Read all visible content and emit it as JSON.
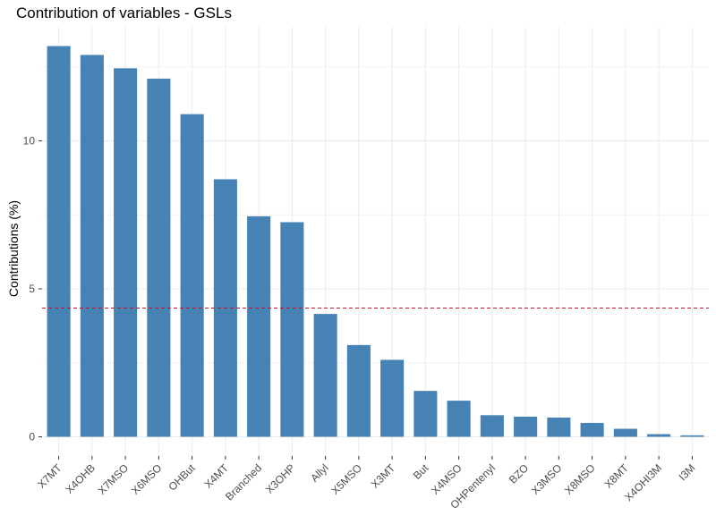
{
  "chart_data": {
    "type": "bar",
    "title": "Contribution of variables - GSLs",
    "xlabel": "",
    "ylabel": "Contributions (%)",
    "categories": [
      "X7MT",
      "X4OHB",
      "X7MSO",
      "X6MSO",
      "OHBut",
      "X4MT",
      "Branched",
      "X3OHP",
      "Allyl",
      "X5MSO",
      "X3MT",
      "But",
      "X4MSO",
      "OHPentenyl",
      "BZO",
      "X3MSO",
      "X8MSO",
      "X8MT",
      "X4OHI3M",
      "I3M"
    ],
    "values": [
      13.2,
      12.9,
      12.45,
      12.1,
      10.9,
      8.7,
      7.45,
      7.25,
      4.15,
      3.1,
      2.6,
      1.55,
      1.22,
      0.73,
      0.68,
      0.65,
      0.47,
      0.27,
      0.09,
      0.05
    ],
    "reference_line": 4.35,
    "ylim": [
      -0.65,
      13.85
    ],
    "yticks": [
      0,
      5,
      10
    ],
    "grid": true,
    "colors": {
      "bar": "#4682B4",
      "reference_line": "#c8102e",
      "grid": "#ebebeb"
    }
  }
}
